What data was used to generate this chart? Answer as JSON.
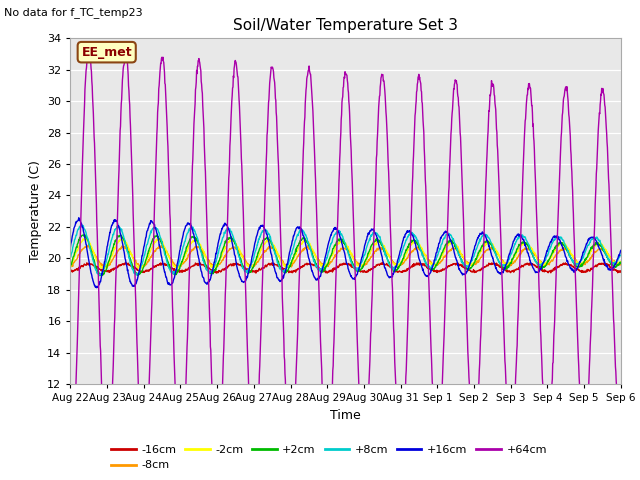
{
  "title": "Soil/Water Temperature Set 3",
  "xlabel": "Time",
  "ylabel": "Temperature (C)",
  "top_left_text": "No data for f_TC_temp23",
  "annotation_text": "EE_met",
  "annotation_box_color": "#ffffc0",
  "annotation_border_color": "#8B4513",
  "ylim": [
    12,
    34
  ],
  "yticks": [
    12,
    14,
    16,
    18,
    20,
    22,
    24,
    26,
    28,
    30,
    32,
    34
  ],
  "xtick_labels": [
    "Aug 22",
    "Aug 23",
    "Aug 24",
    "Aug 25",
    "Aug 26",
    "Aug 27",
    "Aug 28",
    "Aug 29",
    "Aug 30",
    "Aug 31",
    "Sep 1",
    "Sep 2",
    "Sep 3",
    "Sep 4",
    "Sep 5",
    "Sep 6"
  ],
  "n_days": 15,
  "fig_bg_color": "#ffffff",
  "plot_bg_color": "#e8e8e8",
  "grid_color": "#ffffff",
  "series": [
    {
      "label": "-16cm",
      "color": "#cc0000",
      "base": 19.4,
      "amp": 0.25,
      "phase": 0.0,
      "amp_decay": 0.0
    },
    {
      "label": "-8cm",
      "color": "#ff9900",
      "base": 20.1,
      "amp": 0.65,
      "phase": 0.05,
      "amp_decay": 0.25
    },
    {
      "label": "-2cm",
      "color": "#ffff00",
      "base": 20.3,
      "amp": 0.95,
      "phase": 0.1,
      "amp_decay": 0.35
    },
    {
      "label": "+2cm",
      "color": "#00bb00",
      "base": 20.2,
      "amp": 1.3,
      "phase": 0.15,
      "amp_decay": 0.45
    },
    {
      "label": "+8cm",
      "color": "#00cccc",
      "base": 20.5,
      "amp": 1.6,
      "phase": 0.2,
      "amp_decay": 0.5
    },
    {
      "label": "+16cm",
      "color": "#0000dd",
      "base": 20.3,
      "amp": 2.2,
      "phase": 0.28,
      "amp_decay": 0.55
    },
    {
      "label": "+64cm",
      "color": "#aa00aa",
      "base": 19.8,
      "amp": 13.5,
      "phase": 0.0,
      "amp_decay": 0.35
    }
  ],
  "linewidth": 1.0,
  "legend_entries": [
    {
      "label": "-16cm",
      "color": "#cc0000"
    },
    {
      "label": "-8cm",
      "color": "#ff9900"
    },
    {
      "label": "-2cm",
      "color": "#ffff00"
    },
    {
      "label": "+2cm",
      "color": "#00bb00"
    },
    {
      "label": "+8cm",
      "color": "#00cccc"
    },
    {
      "label": "+16cm",
      "color": "#0000dd"
    },
    {
      "label": "+64cm",
      "color": "#aa00aa"
    }
  ]
}
